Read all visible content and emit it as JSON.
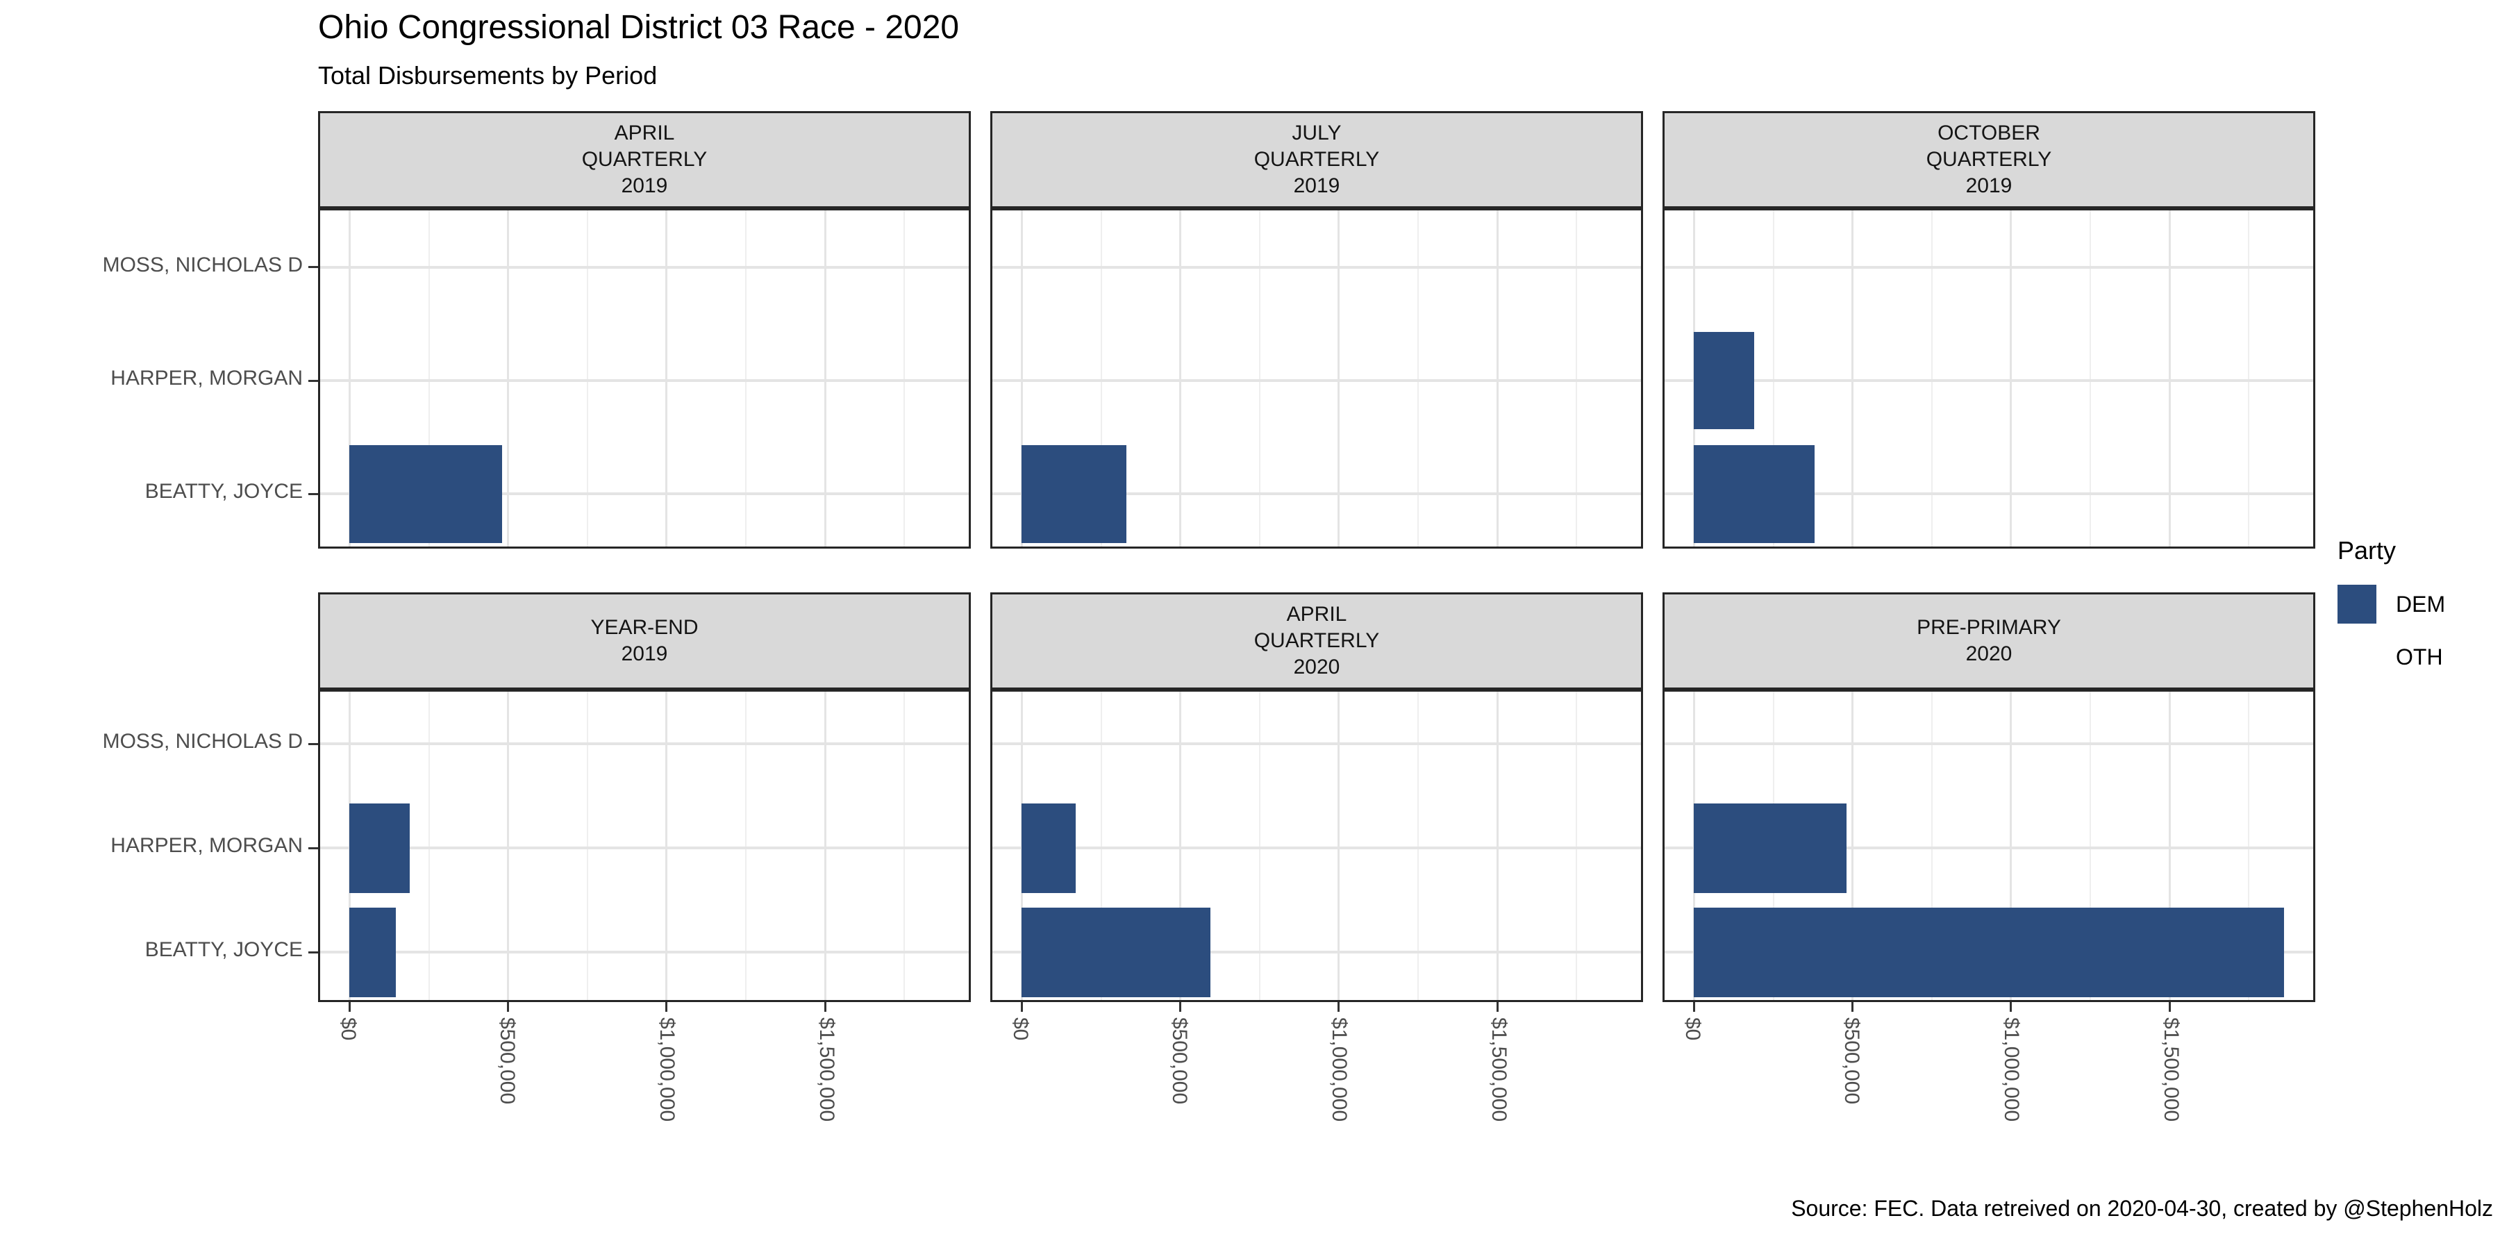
{
  "header": {
    "title": "Ohio Congressional District 03 Race - 2020",
    "subtitle": "Total Disbursements by Period"
  },
  "caption": "Source: FEC. Data retreived on 2020-04-30, created by @StephenHolz",
  "legend": {
    "title": "Party",
    "items": [
      {
        "label": "DEM",
        "color": "#2C4D7E"
      },
      {
        "label": "OTH",
        "color": "#FFFFFF"
      }
    ]
  },
  "colors": {
    "bar_dem": "#2C4D7E",
    "strip_bg": "#D9D9D9",
    "panel_border": "#262626",
    "gridline_major": "#E4E4E4",
    "gridline_minor": "#EFEFEF",
    "axis_text": "#4D4D4D",
    "tick": "#333333"
  },
  "chart_data": {
    "type": "bar",
    "orientation": "horizontal",
    "title": "Ohio Congressional District 03 Race - 2020",
    "subtitle": "Total Disbursements by Period",
    "ylabel": "",
    "xlabel": "",
    "grid": true,
    "legend_position": "right",
    "series_party": "DEM",
    "categories_top_to_bottom": [
      "MOSS, NICHOLAS D",
      "HARPER, MORGAN",
      "BEATTY, JOYCE"
    ],
    "x_tick_labels": [
      "$0",
      "$500,000",
      "$1,000,000",
      "$1,500,000"
    ],
    "x_tick_values": [
      0,
      500000,
      1000000,
      1500000
    ],
    "x_minor_step": 250000,
    "x_domain_max": 1860000,
    "facets": [
      {
        "strip_lines": [
          "APRIL",
          "QUARTERLY",
          "2019"
        ],
        "values": {
          "MOSS, NICHOLAS D": 0,
          "HARPER, MORGAN": 0,
          "BEATTY, JOYCE": 480000
        }
      },
      {
        "strip_lines": [
          "JULY",
          "QUARTERLY",
          "2019"
        ],
        "values": {
          "MOSS, NICHOLAS D": 0,
          "HARPER, MORGAN": 0,
          "BEATTY, JOYCE": 330000
        }
      },
      {
        "strip_lines": [
          "OCTOBER",
          "QUARTERLY",
          "2019"
        ],
        "values": {
          "MOSS, NICHOLAS D": 0,
          "HARPER, MORGAN": 190000,
          "BEATTY, JOYCE": 380000
        }
      },
      {
        "strip_lines": [
          "YEAR-END",
          "2019"
        ],
        "values": {
          "MOSS, NICHOLAS D": 0,
          "HARPER, MORGAN": 190000,
          "BEATTY, JOYCE": 145000
        }
      },
      {
        "strip_lines": [
          "APRIL",
          "QUARTERLY",
          "2020"
        ],
        "values": {
          "MOSS, NICHOLAS D": 0,
          "HARPER, MORGAN": 170000,
          "BEATTY, JOYCE": 595000
        }
      },
      {
        "strip_lines": [
          "PRE-PRIMARY",
          "2020"
        ],
        "values": {
          "MOSS, NICHOLAS D": 0,
          "HARPER, MORGAN": 480000,
          "BEATTY, JOYCE": 1860000
        }
      }
    ]
  }
}
